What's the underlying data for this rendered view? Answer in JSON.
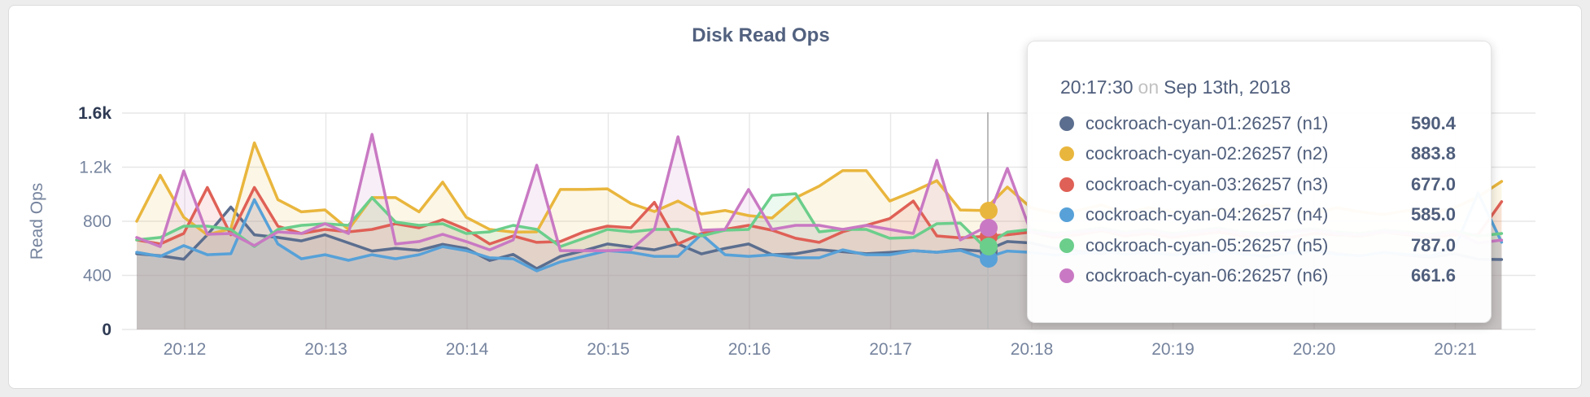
{
  "card": {
    "title": "Disk Read Ops"
  },
  "colors": {
    "n1": "#5b6e8f",
    "n2": "#e9b63d",
    "n3": "#df6056",
    "n4": "#57a1d8",
    "n5": "#6bce8b",
    "n6": "#c979c3",
    "crosshair": "#bbbbbb",
    "grid": "#e7e7e7",
    "axis_text": "#76849e",
    "axis_text_bold": "#2f3b54"
  },
  "tooltip": {
    "time": "20:17:30",
    "preposition": "on",
    "date": "Sep 13th, 2018",
    "rows": [
      {
        "series": "n1",
        "label": "cockroach-cyan-01:26257 (n1)",
        "value": "590.4"
      },
      {
        "series": "n2",
        "label": "cockroach-cyan-02:26257 (n2)",
        "value": "883.8"
      },
      {
        "series": "n3",
        "label": "cockroach-cyan-03:26257 (n3)",
        "value": "677.0"
      },
      {
        "series": "n4",
        "label": "cockroach-cyan-04:26257 (n4)",
        "value": "585.0"
      },
      {
        "series": "n5",
        "label": "cockroach-cyan-05:26257 (n5)",
        "value": "787.0"
      },
      {
        "series": "n6",
        "label": "cockroach-cyan-06:26257 (n6)",
        "value": "661.6"
      }
    ]
  },
  "chart_data": {
    "type": "line",
    "title": "Disk Read Ops",
    "ylabel": "Read Ops",
    "ylim": [
      0,
      1600
    ],
    "grid": true,
    "legend_position": "tooltip-only",
    "x_start_time": "20:11:40",
    "x_step_seconds": 10,
    "x_tick_labels": [
      "20:12",
      "20:13",
      "20:14",
      "20:15",
      "20:16",
      "20:17",
      "20:18",
      "20:19",
      "20:20",
      "20:21"
    ],
    "y_ticks": [
      {
        "value": 0,
        "label": "0"
      },
      {
        "value": 400,
        "label": "400"
      },
      {
        "value": 800,
        "label": "800"
      },
      {
        "value": 1200,
        "label": "1.2k"
      },
      {
        "value": 1600,
        "label": "1.6k"
      }
    ],
    "hovered_time": "20:17:30",
    "series": [
      {
        "id": "n1",
        "name": "cockroach-cyan-01:26257 (n1)",
        "hover_value": 590.4,
        "values": [
          560,
          545,
          520,
          700,
          905,
          700,
          680,
          655,
          700,
          640,
          580,
          600,
          585,
          630,
          600,
          510,
          555,
          450,
          540,
          583,
          632,
          610,
          589,
          632,
          559,
          600,
          632,
          553,
          560,
          590,
          575,
          560,
          570,
          583,
          571,
          590.4,
          578,
          650,
          640,
          600,
          580,
          560,
          590,
          570,
          555,
          580,
          600,
          560,
          540,
          570,
          590,
          560,
          545,
          570,
          550,
          535,
          560,
          520,
          517
        ]
      },
      {
        "id": "n2",
        "name": "cockroach-cyan-02:26257 (n2)",
        "hover_value": 883.8,
        "values": [
          800,
          1140,
          830,
          700,
          745,
          1380,
          960,
          870,
          884,
          740,
          975,
          975,
          870,
          1090,
          830,
          740,
          720,
          722,
          1035,
          1035,
          1040,
          932,
          872,
          950,
          854,
          880,
          842,
          824,
          974,
          1060,
          1175,
          1175,
          950,
          1020,
          1100,
          883.8,
          880,
          1053,
          900,
          860,
          880,
          920,
          860,
          900,
          870,
          850,
          890,
          860,
          920,
          880,
          860,
          900,
          870,
          850,
          880,
          860,
          900,
          980,
          1095
        ]
      },
      {
        "id": "n3",
        "name": "cockroach-cyan-03:26257 (n3)",
        "hover_value": 677.0,
        "values": [
          662,
          632,
          710,
          1050,
          700,
          1050,
          764,
          710,
          740,
          722,
          740,
          782,
          752,
          812,
          740,
          632,
          692,
          644,
          650,
          722,
          764,
          752,
          940,
          632,
          710,
          740,
          770,
          734,
          674,
          644,
          722,
          770,
          820,
          950,
          692,
          677,
          688,
          700,
          720,
          680,
          700,
          730,
          690,
          710,
          680,
          700,
          720,
          690,
          700,
          680,
          710,
          700,
          690,
          720,
          700,
          680,
          700,
          700,
          945
        ]
      },
      {
        "id": "n4",
        "name": "cockroach-cyan-04:26257 (n4)",
        "hover_value": 585.0,
        "values": [
          571,
          541,
          620,
          553,
          560,
          960,
          632,
          523,
          553,
          511,
          553,
          523,
          553,
          613,
          583,
          530,
          523,
          433,
          500,
          541,
          583,
          570,
          541,
          541,
          704,
          553,
          541,
          553,
          530,
          530,
          589,
          553,
          553,
          583,
          571,
          585,
          525,
          580,
          570,
          550,
          560,
          580,
          555,
          570,
          550,
          560,
          580,
          555,
          545,
          565,
          580,
          555,
          545,
          570,
          555,
          545,
          600,
          1010,
          645
        ]
      },
      {
        "id": "n5",
        "name": "cockroach-cyan-05:26257 (n5)",
        "hover_value": 787.0,
        "values": [
          662,
          680,
          764,
          764,
          740,
          613,
          740,
          770,
          782,
          770,
          975,
          794,
          770,
          782,
          710,
          722,
          770,
          740,
          613,
          674,
          740,
          722,
          740,
          740,
          692,
          734,
          740,
          992,
          1004,
          722,
          740,
          740,
          674,
          680,
          782,
          787,
          615,
          720,
          740,
          710,
          730,
          750,
          720,
          740,
          710,
          730,
          750,
          720,
          710,
          730,
          745,
          720,
          710,
          735,
          720,
          705,
          730,
          690,
          710
        ]
      },
      {
        "id": "n6",
        "name": "cockroach-cyan-06:26257 (n6)",
        "hover_value": 661.6,
        "values": [
          680,
          613,
          1173,
          704,
          710,
          620,
          722,
          710,
          782,
          710,
          1443,
          632,
          650,
          704,
          650,
          589,
          662,
          1215,
          583,
          583,
          583,
          589,
          740,
          1425,
          734,
          740,
          1035,
          740,
          770,
          770,
          740,
          770,
          740,
          710,
          1251,
          661.6,
          750,
          1191,
          720,
          700,
          720,
          740,
          710,
          730,
          700,
          720,
          740,
          710,
          700,
          720,
          735,
          710,
          700,
          725,
          710,
          695,
          720,
          640,
          661
        ]
      }
    ]
  }
}
